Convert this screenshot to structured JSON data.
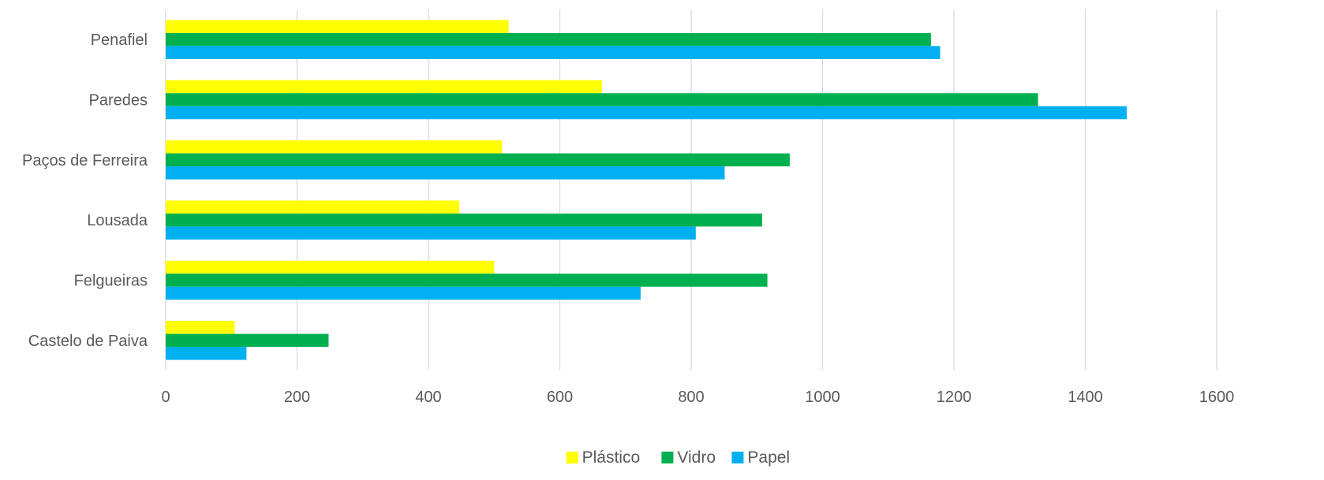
{
  "chart_data": {
    "type": "bar",
    "orientation": "horizontal",
    "categories": [
      "Penafiel",
      "Paredes",
      "Paços de Ferreira",
      "Lousada",
      "Felgueiras",
      "Castelo de Paiva"
    ],
    "series": [
      {
        "name": "Plástico",
        "color": "#FFFF00",
        "values": [
          522,
          664,
          512,
          447,
          500,
          105
        ]
      },
      {
        "name": "Vidro",
        "color": "#00B050",
        "values": [
          1165,
          1328,
          950,
          908,
          916,
          248
        ]
      },
      {
        "name": "Papel",
        "color": "#00B0F0",
        "values": [
          1179,
          1463,
          851,
          807,
          723,
          123
        ]
      }
    ],
    "xlim": [
      0,
      1600
    ],
    "xticks": [
      0,
      200,
      400,
      600,
      800,
      1000,
      1200,
      1400,
      1600
    ],
    "grid": "vertical",
    "legend": "bottom",
    "title": "",
    "xlabel": "",
    "ylabel": ""
  }
}
